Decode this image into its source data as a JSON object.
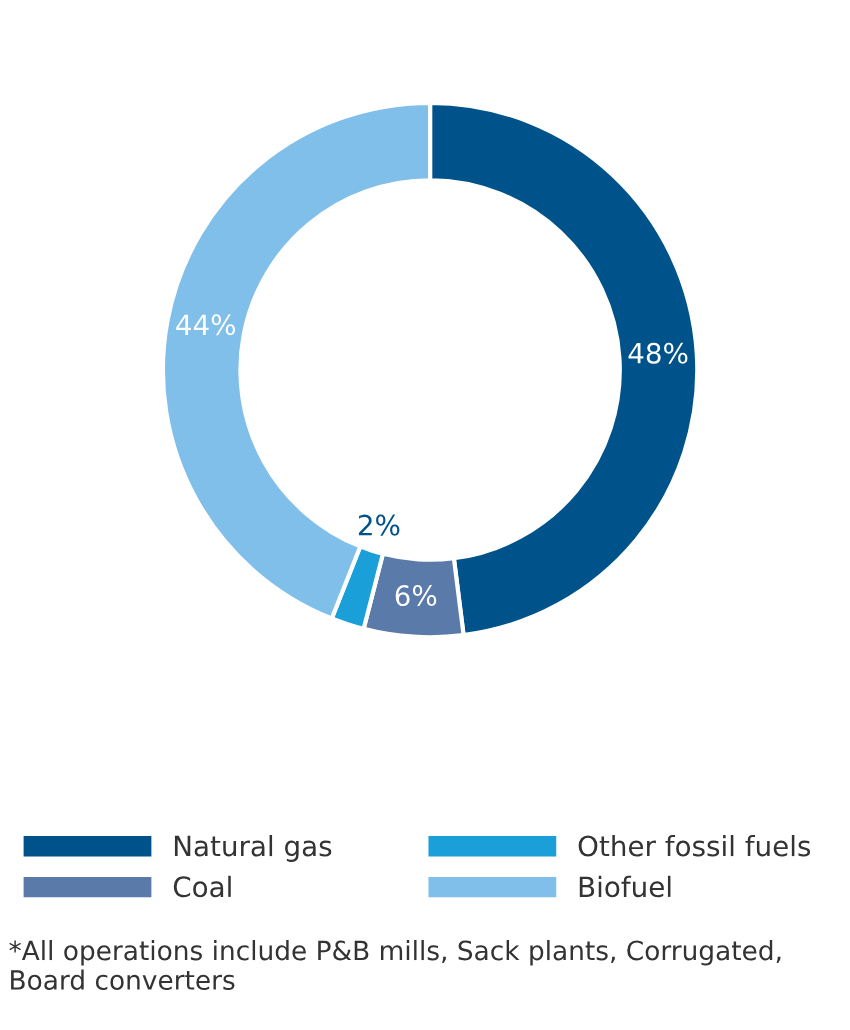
{
  "chart_data": {
    "type": "donut",
    "categories": [
      "Natural gas",
      "Coal",
      "Other fossil fuels",
      "Biofuel"
    ],
    "values": [
      48,
      6,
      2,
      44
    ],
    "colors": [
      "#00538a",
      "#5a7aaa",
      "#1a9fd9",
      "#7fbfea"
    ],
    "value_labels": [
      "48%",
      "6%",
      "2%",
      "44%"
    ],
    "legend": "bottom",
    "annotations": [
      "*All operations include P&B mills, Sack plants, Corrugated, Board converters"
    ]
  }
}
